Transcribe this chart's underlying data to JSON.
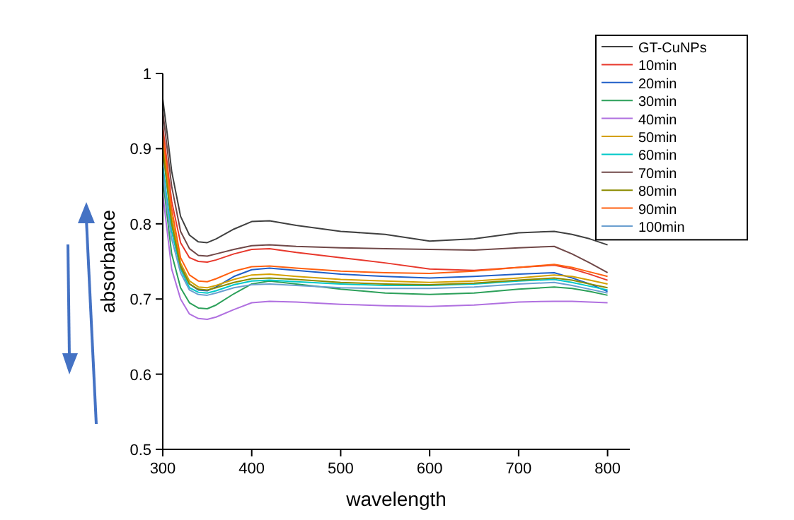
{
  "chart_data": {
    "type": "line",
    "xlabel": "wavelength",
    "ylabel": "absorbance",
    "x": [
      300,
      305,
      310,
      320,
      330,
      340,
      350,
      360,
      380,
      400,
      420,
      450,
      500,
      550,
      600,
      650,
      700,
      740,
      760,
      780,
      800
    ],
    "xlim": [
      300,
      825
    ],
    "xticks": [
      300,
      400,
      500,
      600,
      700,
      800
    ],
    "ylim": [
      0.5,
      1.0
    ],
    "yticks": [
      0.5,
      0.6,
      0.7,
      0.8,
      0.9,
      1
    ],
    "grid": false,
    "legend": "top right",
    "line_style": "solid",
    "marker": "none",
    "series": [
      {
        "name": "GT-CuNPs",
        "color": "#404040",
        "values": [
          0.966,
          0.92,
          0.87,
          0.81,
          0.785,
          0.776,
          0.775,
          0.78,
          0.793,
          0.803,
          0.804,
          0.798,
          0.79,
          0.786,
          0.777,
          0.78,
          0.788,
          0.79,
          0.786,
          0.78,
          0.772
        ]
      },
      {
        "name": "10min",
        "color": "#e8382c",
        "values": [
          0.93,
          0.88,
          0.83,
          0.775,
          0.755,
          0.75,
          0.749,
          0.752,
          0.76,
          0.766,
          0.767,
          0.762,
          0.755,
          0.748,
          0.74,
          0.738,
          0.742,
          0.745,
          0.74,
          0.733,
          0.725
        ]
      },
      {
        "name": "20min",
        "color": "#1f5fc8",
        "values": [
          0.9,
          0.85,
          0.8,
          0.745,
          0.72,
          0.712,
          0.711,
          0.716,
          0.73,
          0.739,
          0.741,
          0.738,
          0.733,
          0.73,
          0.728,
          0.73,
          0.733,
          0.735,
          0.728,
          0.72,
          0.71
        ]
      },
      {
        "name": "30min",
        "color": "#2ca05a",
        "values": [
          0.86,
          0.81,
          0.76,
          0.715,
          0.695,
          0.688,
          0.687,
          0.692,
          0.707,
          0.72,
          0.724,
          0.72,
          0.713,
          0.708,
          0.706,
          0.708,
          0.713,
          0.716,
          0.714,
          0.71,
          0.705
        ]
      },
      {
        "name": "40min",
        "color": "#b070e0",
        "values": [
          0.84,
          0.79,
          0.74,
          0.7,
          0.68,
          0.674,
          0.673,
          0.676,
          0.686,
          0.695,
          0.697,
          0.696,
          0.693,
          0.691,
          0.69,
          0.692,
          0.696,
          0.697,
          0.697,
          0.696,
          0.695
        ]
      },
      {
        "name": "50min",
        "color": "#d4a000",
        "values": [
          0.91,
          0.86,
          0.81,
          0.748,
          0.724,
          0.716,
          0.715,
          0.718,
          0.726,
          0.732,
          0.733,
          0.73,
          0.726,
          0.724,
          0.722,
          0.724,
          0.728,
          0.732,
          0.73,
          0.725,
          0.72
        ]
      },
      {
        "name": "60min",
        "color": "#00c8c8",
        "values": [
          0.88,
          0.83,
          0.79,
          0.74,
          0.715,
          0.709,
          0.708,
          0.711,
          0.719,
          0.724,
          0.725,
          0.723,
          0.72,
          0.718,
          0.718,
          0.72,
          0.724,
          0.726,
          0.722,
          0.717,
          0.712
        ]
      },
      {
        "name": "70min",
        "color": "#704848",
        "values": [
          0.95,
          0.9,
          0.85,
          0.79,
          0.767,
          0.758,
          0.757,
          0.76,
          0.766,
          0.771,
          0.772,
          0.77,
          0.768,
          0.767,
          0.766,
          0.765,
          0.768,
          0.77,
          0.76,
          0.748,
          0.735
        ]
      },
      {
        "name": "80min",
        "color": "#8b8b00",
        "values": [
          0.9,
          0.85,
          0.8,
          0.743,
          0.72,
          0.713,
          0.712,
          0.715,
          0.722,
          0.727,
          0.728,
          0.726,
          0.722,
          0.72,
          0.719,
          0.721,
          0.725,
          0.728,
          0.725,
          0.72,
          0.715
        ]
      },
      {
        "name": "90min",
        "color": "#ff6010",
        "values": [
          0.92,
          0.87,
          0.82,
          0.755,
          0.732,
          0.724,
          0.723,
          0.727,
          0.737,
          0.743,
          0.744,
          0.741,
          0.737,
          0.735,
          0.734,
          0.737,
          0.742,
          0.746,
          0.742,
          0.736,
          0.73
        ]
      },
      {
        "name": "100min",
        "color": "#6a9fd0",
        "values": [
          0.87,
          0.82,
          0.78,
          0.735,
          0.712,
          0.706,
          0.705,
          0.708,
          0.715,
          0.719,
          0.72,
          0.718,
          0.715,
          0.714,
          0.714,
          0.716,
          0.72,
          0.722,
          0.718,
          0.713,
          0.708
        ]
      }
    ]
  }
}
